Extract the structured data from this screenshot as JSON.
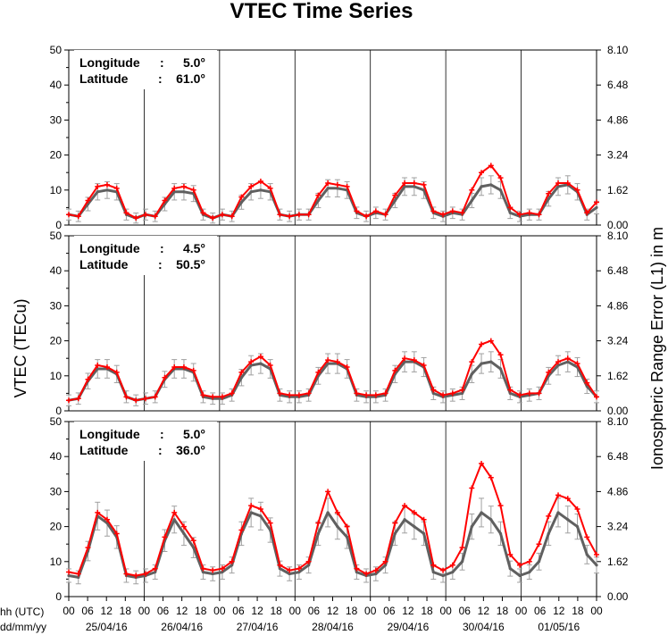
{
  "chart_data": {
    "type": "line",
    "title": "VTEC Time Series",
    "ylabel_left": "VTEC (TECu)",
    "ylabel_right": "Ionospheric Range Error (L1) in m",
    "xlabel_hours": "hh (UTC)",
    "xlabel_dates": "dd/mm/yy",
    "xlim_days": [
      0,
      7
    ],
    "ylim": [
      0,
      50
    ],
    "yticks_left": [
      "0",
      "10",
      "20",
      "30",
      "40",
      "50"
    ],
    "yticks_right": [
      "0.00",
      "1.62",
      "3.24",
      "4.86",
      "6.48",
      "8.10"
    ],
    "hour_ticks": [
      "00",
      "06",
      "12",
      "18"
    ],
    "final_hour_tick": "00",
    "dates": [
      "25/04/16",
      "26/04/16",
      "27/04/16",
      "28/04/16",
      "29/04/16",
      "30/04/16",
      "01/05/16"
    ],
    "colors": {
      "observed": "#ff0000",
      "reference": "#606060",
      "error_bar": "#a0a0a0"
    },
    "panels": [
      {
        "longitude_label": "Longitude",
        "longitude_value": "5.0°",
        "latitude_label": "Latitude",
        "latitude_value": "61.0°",
        "series": [
          {
            "style": "observed",
            "values": [
              3,
              2.5,
              7,
              11,
              11.5,
              10.5,
              3.5,
              2,
              3,
              2.5,
              7,
              10.5,
              11,
              10,
              3.5,
              2,
              3,
              2.5,
              8,
              11,
              12.5,
              10.5,
              3,
              2.5,
              3,
              3,
              8.5,
              12,
              11.5,
              11,
              4,
              2.5,
              4,
              3,
              8.5,
              12,
              12,
              11.5,
              4,
              3,
              4,
              3.5,
              10,
              15,
              17,
              13.5,
              5,
              3,
              3.5,
              3,
              9,
              12,
              12,
              10,
              3.5,
              6.5
            ]
          },
          {
            "style": "reference",
            "values": [
              3,
              2.5,
              6,
              9.5,
              10,
              9.5,
              3,
              2,
              3,
              2.5,
              6,
              9.5,
              9.5,
              9,
              3,
              2,
              3,
              2.5,
              6.5,
              9.5,
              10,
              9.5,
              3,
              2.5,
              3,
              3,
              7,
              10.5,
              10.5,
              10,
              3.5,
              2.5,
              3.5,
              3,
              7,
              11,
              11,
              10,
              3.5,
              2.5,
              3.5,
              3,
              7,
              11,
              11.5,
              10,
              3.5,
              2.5,
              3,
              3,
              7.5,
              11,
              11.5,
              9.5,
              3,
              5
            ]
          }
        ]
      },
      {
        "longitude_label": "Longitude",
        "longitude_value": "4.5°",
        "latitude_label": "Latitude",
        "latitude_value": "50.5°",
        "series": [
          {
            "style": "observed",
            "values": [
              3,
              3.5,
              9,
              13,
              12.5,
              11,
              4,
              3,
              3.5,
              4,
              9.5,
              12.5,
              12.5,
              11.5,
              4.5,
              4,
              4,
              5,
              11,
              14,
              15.5,
              13,
              5,
              4.5,
              4.5,
              5,
              11,
              14.5,
              14,
              12.5,
              5,
              4.5,
              4.5,
              5,
              11.5,
              15,
              14.5,
              13,
              6,
              4.5,
              5,
              6,
              14,
              19,
              20,
              16,
              6,
              4.5,
              5,
              5,
              11,
              14,
              15,
              13.5,
              8,
              4
            ]
          },
          {
            "style": "reference",
            "values": [
              3,
              3.5,
              8.5,
              12,
              12,
              10.5,
              4,
              3,
              3.5,
              4,
              9,
              12,
              12,
              11,
              4,
              3.5,
              3.5,
              4.5,
              9.5,
              13,
              13.5,
              12,
              4.5,
              4,
              4,
              4.5,
              10,
              13.5,
              13.5,
              12,
              4.5,
              4,
              4,
              4.5,
              10.5,
              14,
              14,
              12.5,
              5,
              4,
              4.5,
              5,
              10.5,
              13.5,
              14,
              12,
              5,
              4,
              4.5,
              5,
              10,
              13,
              14,
              12.5,
              7,
              4
            ]
          }
        ]
      },
      {
        "longitude_label": "Longitude",
        "longitude_value": "5.0°",
        "latitude_label": "Latitude",
        "latitude_value": "36.0°",
        "series": [
          {
            "style": "observed",
            "values": [
              7,
              6.5,
              14,
              24,
              22,
              18,
              6.5,
              6,
              6.5,
              8,
              17,
              24,
              20,
              16,
              8,
              7.5,
              8,
              10,
              19,
              26,
              25,
              21,
              9,
              7.5,
              8,
              10,
              21,
              30,
              24,
              20,
              8,
              6.5,
              7.5,
              10,
              21,
              26,
              24,
              22,
              9,
              7.5,
              9,
              14,
              31,
              38,
              34,
              26,
              12,
              9,
              10,
              15,
              23,
              29,
              28,
              25,
              17,
              12
            ]
          },
          {
            "style": "reference",
            "values": [
              6,
              5.5,
              13,
              23,
              21,
              17,
              6,
              5.5,
              6,
              7,
              16,
              22,
              18,
              14,
              7,
              6.5,
              7,
              9,
              18,
              24,
              23,
              19,
              8,
              6.5,
              7,
              9,
              18,
              24,
              20,
              17,
              7,
              6,
              6.5,
              9,
              18,
              22,
              20,
              18,
              7,
              6,
              7,
              10,
              20,
              24,
              22,
              18,
              8,
              6,
              7,
              10,
              18,
              24,
              22,
              20,
              12,
              9
            ]
          }
        ]
      }
    ]
  }
}
